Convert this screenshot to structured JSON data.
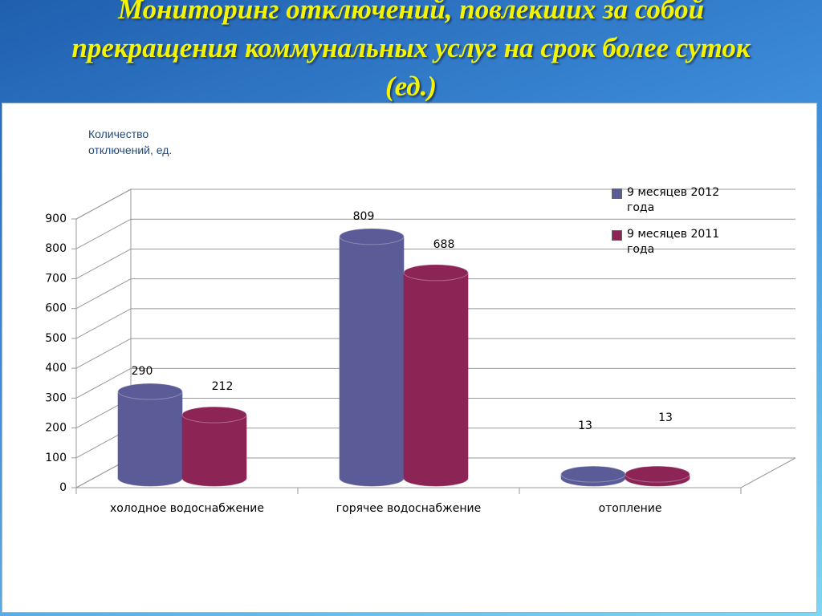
{
  "chart_data": {
    "type": "bar3d",
    "title": "Мониторинг отключений, повлекших за собой прекращения коммунальных услуг на срок более суток (ед.)",
    "y_label": "Количество отключений, ед.",
    "categories": [
      "холодное водоснабжение",
      "горячее водоснабжение",
      "отопление"
    ],
    "series": [
      {
        "name": "9 месяцев 2012 года",
        "color": "#5b5b98",
        "values": [
          290,
          809,
          13
        ]
      },
      {
        "name": "9 месяцев 2011 года",
        "color": "#8c2456",
        "values": [
          212,
          688,
          13
        ]
      }
    ],
    "ylim": [
      0,
      900
    ],
    "yticks": [
      0,
      100,
      200,
      300,
      400,
      500,
      600,
      700,
      800,
      900
    ],
    "grid": true
  }
}
